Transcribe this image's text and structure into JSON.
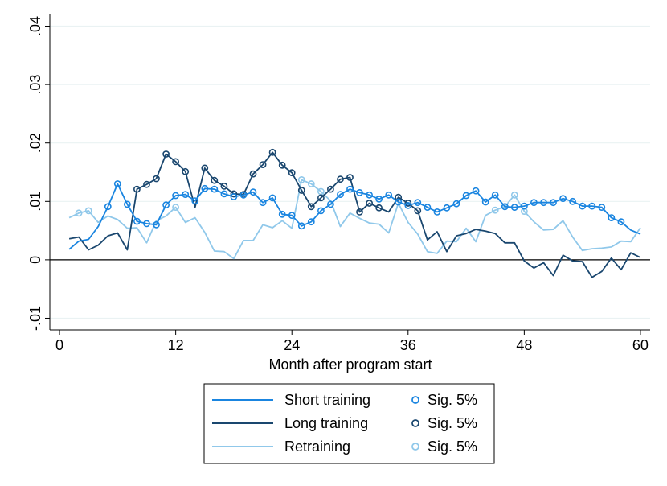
{
  "chart_data": {
    "type": "line",
    "title": "",
    "xlabel": "Month after program start",
    "ylabel": "",
    "xlim": [
      -1,
      61
    ],
    "ylim": [
      -0.012,
      0.042
    ],
    "xticks": [
      0,
      12,
      24,
      36,
      48,
      60
    ],
    "xtick_labels": [
      "0",
      "12",
      "24",
      "36",
      "48",
      "60"
    ],
    "yticks": [
      -0.01,
      0,
      0.01,
      0.02,
      0.03,
      0.04
    ],
    "ytick_labels": [
      "-.01",
      "0",
      ".01",
      ".02",
      ".03",
      ".04"
    ],
    "grid": "horizontal",
    "zero_line": true,
    "legend_position": "bottom",
    "x": [
      1,
      2,
      3,
      4,
      5,
      6,
      7,
      8,
      9,
      10,
      11,
      12,
      13,
      14,
      15,
      16,
      17,
      18,
      19,
      20,
      21,
      22,
      23,
      24,
      25,
      26,
      27,
      28,
      29,
      30,
      31,
      32,
      33,
      34,
      35,
      36,
      37,
      38,
      39,
      40,
      41,
      42,
      43,
      44,
      45,
      46,
      47,
      48,
      49,
      50,
      51,
      52,
      53,
      54,
      55,
      56,
      57,
      58,
      59,
      60
    ],
    "series": [
      {
        "name": "Short training",
        "color": "#1a85e0",
        "values": [
          0.0018,
          0.0032,
          0.0035,
          0.0057,
          0.0091,
          0.013,
          0.0095,
          0.0066,
          0.0062,
          0.006,
          0.0094,
          0.011,
          0.0112,
          0.0101,
          0.0122,
          0.0121,
          0.0113,
          0.0108,
          0.0111,
          0.0116,
          0.0098,
          0.0106,
          0.0078,
          0.0076,
          0.0058,
          0.0065,
          0.0084,
          0.0095,
          0.0112,
          0.0121,
          0.0115,
          0.0111,
          0.0104,
          0.0111,
          0.0099,
          0.0093,
          0.0098,
          0.009,
          0.0082,
          0.0089,
          0.0096,
          0.011,
          0.0118,
          0.0099,
          0.0111,
          0.0091,
          0.009,
          0.0092,
          0.0098,
          0.0098,
          0.0098,
          0.0105,
          0.01,
          0.0092,
          0.0092,
          0.009,
          0.0072,
          0.0065,
          0.0051,
          0.0044
        ],
        "sig": [
          false,
          false,
          false,
          false,
          true,
          true,
          true,
          true,
          true,
          true,
          true,
          true,
          true,
          true,
          true,
          true,
          true,
          true,
          true,
          true,
          true,
          true,
          true,
          true,
          true,
          true,
          true,
          true,
          true,
          true,
          true,
          true,
          true,
          true,
          true,
          true,
          true,
          true,
          true,
          true,
          true,
          true,
          true,
          true,
          true,
          true,
          true,
          true,
          true,
          true,
          true,
          true,
          true,
          true,
          true,
          true,
          true,
          true,
          false,
          false
        ]
      },
      {
        "name": "Long training",
        "color": "#1a476f",
        "values": [
          0.0036,
          0.0039,
          0.0017,
          0.0025,
          0.0041,
          0.0046,
          0.0017,
          0.0121,
          0.0129,
          0.0139,
          0.0181,
          0.0168,
          0.0151,
          0.009,
          0.0157,
          0.0136,
          0.0126,
          0.0113,
          0.0112,
          0.0147,
          0.0163,
          0.0184,
          0.0162,
          0.0149,
          0.0119,
          0.0091,
          0.0106,
          0.0121,
          0.0138,
          0.0141,
          0.0082,
          0.0097,
          0.0089,
          0.0082,
          0.0107,
          0.0097,
          0.0084,
          0.0034,
          0.0048,
          0.0014,
          0.0041,
          0.0045,
          0.0052,
          0.0049,
          0.0045,
          0.0029,
          0.0029,
          -0.0002,
          -0.0014,
          -0.0005,
          -0.0027,
          0.0008,
          -0.0002,
          -0.0003,
          -0.003,
          -0.002,
          0.0003,
          -0.0017,
          0.0012,
          0.0004
        ],
        "sig": [
          false,
          false,
          false,
          false,
          false,
          false,
          false,
          true,
          true,
          true,
          true,
          true,
          true,
          false,
          true,
          true,
          true,
          true,
          true,
          true,
          true,
          true,
          true,
          true,
          true,
          true,
          true,
          true,
          true,
          true,
          true,
          true,
          true,
          false,
          true,
          true,
          true,
          false,
          false,
          false,
          false,
          false,
          false,
          false,
          false,
          false,
          false,
          false,
          false,
          false,
          false,
          false,
          false,
          false,
          false,
          false,
          false,
          false,
          false,
          false
        ]
      },
      {
        "name": "Retraining",
        "color": "#90c8ea",
        "values": [
          0.0072,
          0.008,
          0.0084,
          0.0064,
          0.0075,
          0.0069,
          0.0054,
          0.0055,
          0.0029,
          0.0067,
          0.0075,
          0.009,
          0.0064,
          0.0072,
          0.0047,
          0.0015,
          0.0014,
          0.0002,
          0.0033,
          0.0033,
          0.006,
          0.0055,
          0.0067,
          0.0054,
          0.0137,
          0.013,
          0.0117,
          0.0101,
          0.0057,
          0.008,
          0.0071,
          0.0063,
          0.0061,
          0.0046,
          0.0097,
          0.0064,
          0.0044,
          0.0014,
          0.0011,
          0.0032,
          0.0031,
          0.0054,
          0.0031,
          0.0076,
          0.0085,
          0.0091,
          0.0111,
          0.0083,
          0.0065,
          0.0051,
          0.0052,
          0.0067,
          0.0039,
          0.0016,
          0.0019,
          0.002,
          0.0022,
          0.0032,
          0.0031,
          0.0055
        ],
        "sig": [
          false,
          true,
          true,
          false,
          false,
          false,
          false,
          false,
          false,
          false,
          false,
          true,
          false,
          false,
          false,
          false,
          false,
          false,
          false,
          false,
          false,
          false,
          false,
          false,
          true,
          true,
          true,
          false,
          false,
          false,
          false,
          false,
          false,
          false,
          false,
          false,
          false,
          false,
          false,
          false,
          false,
          false,
          false,
          false,
          true,
          true,
          true,
          true,
          false,
          false,
          false,
          false,
          false,
          false,
          false,
          false,
          false,
          false,
          false,
          false
        ]
      }
    ],
    "legend": {
      "lines": [
        "Short training",
        "Long training",
        "Retraining"
      ],
      "markers": [
        "Sig. 5%",
        "Sig. 5%",
        "Sig. 5%"
      ]
    }
  }
}
